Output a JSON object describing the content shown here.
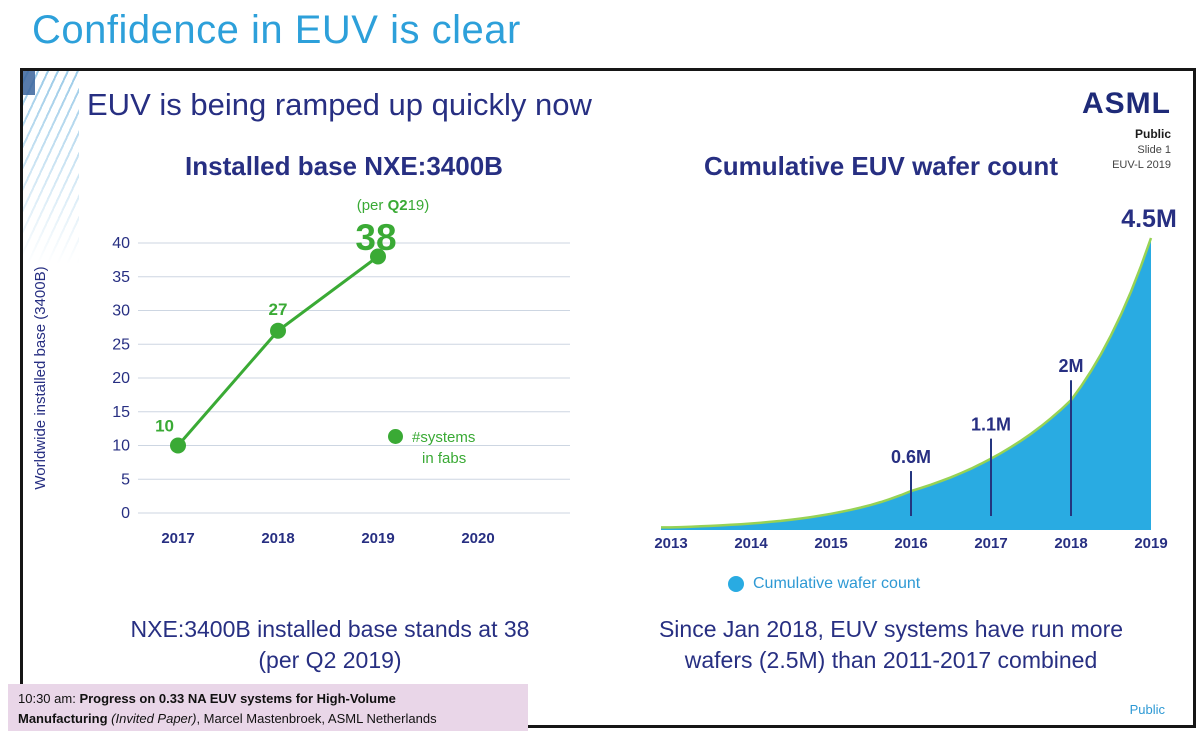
{
  "page": {
    "title": "Confidence in EUV is clear"
  },
  "slide": {
    "title": "EUV is being ramped up quickly now",
    "logo": "ASML",
    "meta": {
      "classification": "Public",
      "slide_number": "Slide 1",
      "event": "EUV-L 2019"
    },
    "footer_classification": "Public"
  },
  "chart_data": [
    {
      "type": "line",
      "title": "Installed base NXE:3400B",
      "subtitle_prefix": "(per ",
      "subtitle_bold": "Q2",
      "subtitle_suffix": "19)",
      "big_value_label": "38",
      "ylabel": "Worldwide installed base (3400B)",
      "x": [
        "2017",
        "2018",
        "2019"
      ],
      "values": [
        10,
        27,
        38
      ],
      "point_labels": [
        "10",
        "27"
      ],
      "xticks": [
        "2017",
        "2018",
        "2019",
        "2020"
      ],
      "yticks": [
        0,
        5,
        10,
        15,
        20,
        25,
        30,
        35,
        40
      ],
      "ylim": [
        0,
        40
      ],
      "line_color": "#3aaa35",
      "grid": true,
      "legend": {
        "line1": "#systems",
        "line2": "in fabs"
      },
      "caption_line1": "NXE:3400B installed base stands at 38",
      "caption_line2": "(per Q2 2019)"
    },
    {
      "type": "area",
      "title": "Cumulative EUV wafer count",
      "x": [
        "2013",
        "2014",
        "2015",
        "2016",
        "2017",
        "2018",
        "2019"
      ],
      "values": [
        0.04,
        0.1,
        0.25,
        0.6,
        1.1,
        2.0,
        4.5
      ],
      "ylim": [
        0,
        4.7
      ],
      "annotations": [
        {
          "x": "2016",
          "label": "0.6M"
        },
        {
          "x": "2017",
          "label": "1.1M"
        },
        {
          "x": "2018",
          "label": "2M"
        }
      ],
      "peak_label": "4.5M",
      "area_color": "#29abe2",
      "edge_color": "#97d254",
      "annotation_color": "#24357f",
      "legend": "Cumulative wafer count",
      "caption_line1": "Since Jan 2018, EUV systems have run more",
      "caption_line2": "wafers (2.5M) than 2011-2017 combined"
    }
  ],
  "footnote": {
    "time": "10:30 am: ",
    "title_part1": "Progress on 0.33 NA EUV systems for High-Volume",
    "title_part2": "Manufacturing ",
    "paper_type": "(Invited Paper)",
    "authors": ", Marcel Mastenbroek, ASML Netherlands"
  }
}
